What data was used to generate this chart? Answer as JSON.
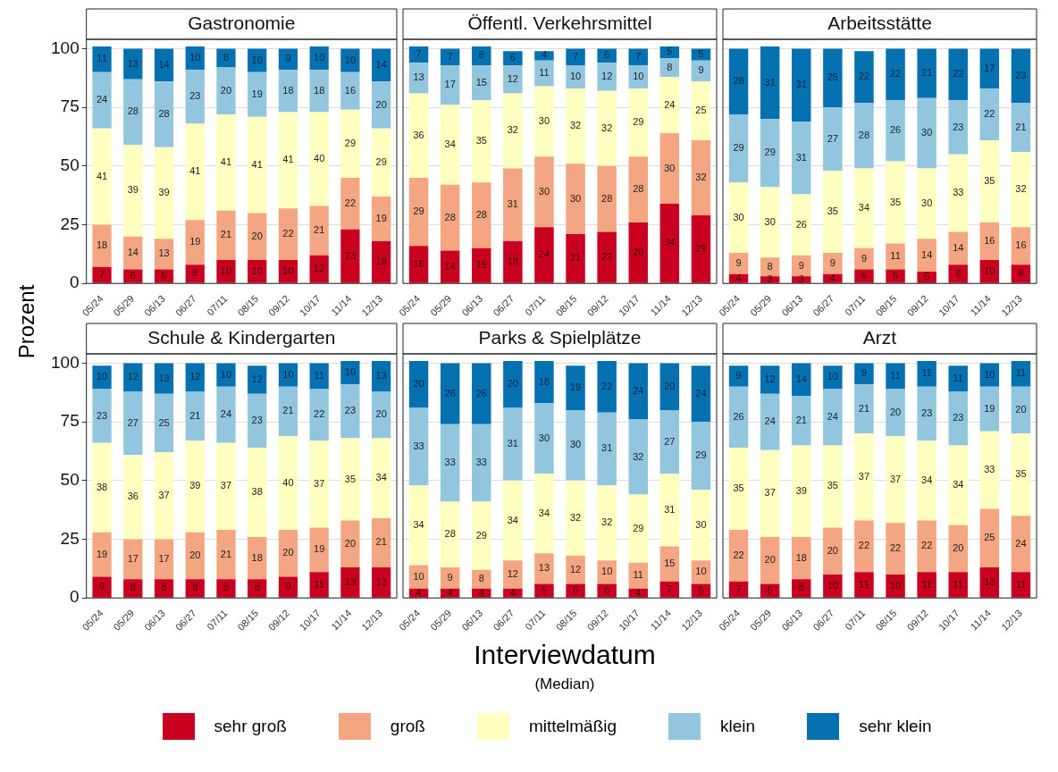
{
  "chart_data": [
    {
      "type": "bar",
      "stacked": true,
      "title": "Gastronomie",
      "ylabel": "Prozent",
      "categories": [
        "05/24",
        "05/29",
        "06/13",
        "06/27",
        "07/11",
        "08/15",
        "09/12",
        "10/17",
        "11/14",
        "12/13"
      ],
      "ylim": [
        0,
        104
      ],
      "yticks": [
        0,
        25,
        50,
        75,
        100
      ],
      "grid": "y",
      "data_labels": true,
      "legend": "bottom",
      "tick_labels": "xy",
      "series": [
        {
          "name": "sehr groß",
          "color": "#ca0020",
          "values": [
            7,
            6,
            6,
            8,
            10,
            10,
            10,
            12,
            23,
            18
          ]
        },
        {
          "name": "groß",
          "color": "#f4a582",
          "values": [
            18,
            14,
            13,
            19,
            21,
            20,
            22,
            21,
            22,
            19
          ]
        },
        {
          "name": "mittelmäßig",
          "color": "#ffffbf",
          "values": [
            41,
            39,
            39,
            41,
            41,
            41,
            41,
            40,
            29,
            29
          ]
        },
        {
          "name": "klein",
          "color": "#92c5de",
          "values": [
            24,
            28,
            28,
            23,
            20,
            19,
            18,
            18,
            16,
            20
          ]
        },
        {
          "name": "sehr klein",
          "color": "#0571b0",
          "values": [
            11,
            13,
            14,
            10,
            8,
            10,
            9,
            10,
            10,
            14
          ]
        }
      ]
    },
    {
      "type": "bar",
      "stacked": true,
      "title": "Öffentl. Verkehrsmittel",
      "categories": [
        "05/24",
        "05/29",
        "06/13",
        "06/27",
        "07/11",
        "08/15",
        "09/12",
        "10/17",
        "11/14",
        "12/13"
      ],
      "ylim": [
        0,
        104
      ],
      "yticks": [
        0,
        25,
        50,
        75,
        100
      ],
      "grid": "y",
      "data_labels": true,
      "tick_labels": "x",
      "series": [
        {
          "color": "#ca0020",
          "values": [
            16,
            14,
            15,
            18,
            24,
            21,
            22,
            26,
            34,
            29
          ]
        },
        {
          "color": "#f4a582",
          "values": [
            29,
            28,
            28,
            31,
            30,
            30,
            28,
            28,
            30,
            32
          ]
        },
        {
          "color": "#ffffbf",
          "values": [
            36,
            34,
            35,
            32,
            30,
            32,
            32,
            29,
            24,
            25
          ]
        },
        {
          "color": "#92c5de",
          "values": [
            13,
            17,
            15,
            12,
            11,
            10,
            12,
            10,
            8,
            9
          ]
        },
        {
          "color": "#0571b0",
          "values": [
            7,
            7,
            8,
            6,
            4,
            7,
            6,
            7,
            5,
            5
          ]
        }
      ]
    },
    {
      "type": "bar",
      "stacked": true,
      "title": "Arbeitsstätte",
      "categories": [
        "05/24",
        "05/29",
        "06/13",
        "06/27",
        "07/11",
        "08/15",
        "09/12",
        "10/17",
        "11/14",
        "12/13"
      ],
      "ylim": [
        0,
        104
      ],
      "yticks": [
        0,
        25,
        50,
        75,
        100
      ],
      "grid": "y",
      "data_labels": true,
      "tick_labels": "x",
      "series": [
        {
          "color": "#ca0020",
          "values": [
            4,
            3,
            3,
            4,
            6,
            6,
            5,
            8,
            10,
            8
          ]
        },
        {
          "color": "#f4a582",
          "values": [
            9,
            8,
            9,
            9,
            9,
            11,
            14,
            14,
            16,
            16
          ]
        },
        {
          "color": "#ffffbf",
          "values": [
            30,
            30,
            26,
            35,
            34,
            35,
            30,
            33,
            35,
            32
          ]
        },
        {
          "color": "#92c5de",
          "values": [
            29,
            29,
            31,
            27,
            28,
            26,
            30,
            23,
            22,
            21
          ]
        },
        {
          "color": "#0571b0",
          "values": [
            28,
            31,
            31,
            25,
            22,
            22,
            21,
            22,
            17,
            23
          ]
        }
      ]
    },
    {
      "type": "bar",
      "stacked": true,
      "title": "Schule & Kindergarten",
      "categories": [
        "05/24",
        "05/29",
        "06/13",
        "06/27",
        "07/11",
        "08/15",
        "09/12",
        "10/17",
        "11/14",
        "12/13"
      ],
      "ylim": [
        0,
        104
      ],
      "yticks": [
        0,
        25,
        50,
        75,
        100
      ],
      "grid": "y",
      "data_labels": true,
      "tick_labels": "xy",
      "series": [
        {
          "color": "#ca0020",
          "values": [
            9,
            8,
            8,
            8,
            8,
            8,
            9,
            11,
            13,
            13
          ]
        },
        {
          "color": "#f4a582",
          "values": [
            19,
            17,
            17,
            20,
            21,
            18,
            20,
            19,
            20,
            21
          ]
        },
        {
          "color": "#ffffbf",
          "values": [
            38,
            36,
            37,
            39,
            37,
            38,
            40,
            37,
            35,
            34
          ]
        },
        {
          "color": "#92c5de",
          "values": [
            23,
            27,
            25,
            21,
            24,
            23,
            21,
            22,
            23,
            20
          ]
        },
        {
          "color": "#0571b0",
          "values": [
            10,
            12,
            13,
            12,
            10,
            12,
            10,
            11,
            10,
            13
          ]
        }
      ]
    },
    {
      "type": "bar",
      "stacked": true,
      "title": "Parks & Spielplätze",
      "xlabel": "Interviewdatum",
      "annotations": [
        "(Median)"
      ],
      "categories": [
        "05/24",
        "05/29",
        "06/13",
        "06/27",
        "07/11",
        "08/15",
        "09/12",
        "10/17",
        "11/14",
        "12/13"
      ],
      "ylim": [
        0,
        104
      ],
      "yticks": [
        0,
        25,
        50,
        75,
        100
      ],
      "grid": "y",
      "data_labels": true,
      "tick_labels": "x",
      "series": [
        {
          "color": "#ca0020",
          "values": [
            4,
            4,
            4,
            4,
            6,
            6,
            6,
            4,
            7,
            6
          ]
        },
        {
          "color": "#f4a582",
          "values": [
            10,
            9,
            8,
            12,
            13,
            12,
            10,
            11,
            15,
            10
          ]
        },
        {
          "color": "#ffffbf",
          "values": [
            34,
            28,
            29,
            34,
            34,
            32,
            32,
            29,
            31,
            30
          ]
        },
        {
          "color": "#92c5de",
          "values": [
            33,
            33,
            33,
            31,
            30,
            30,
            31,
            32,
            27,
            29
          ]
        },
        {
          "color": "#0571b0",
          "values": [
            20,
            26,
            26,
            20,
            18,
            19,
            22,
            24,
            20,
            24
          ]
        }
      ]
    },
    {
      "type": "bar",
      "stacked": true,
      "title": "Arzt",
      "categories": [
        "05/24",
        "05/29",
        "06/13",
        "06/27",
        "07/11",
        "08/15",
        "09/12",
        "10/17",
        "11/14",
        "12/13"
      ],
      "ylim": [
        0,
        104
      ],
      "yticks": [
        0,
        25,
        50,
        75,
        100
      ],
      "grid": "y",
      "data_labels": true,
      "tick_labels": "x",
      "series": [
        {
          "color": "#ca0020",
          "values": [
            7,
            6,
            8,
            10,
            11,
            10,
            11,
            11,
            13,
            11
          ]
        },
        {
          "color": "#f4a582",
          "values": [
            22,
            20,
            18,
            20,
            22,
            22,
            22,
            20,
            25,
            24
          ]
        },
        {
          "color": "#ffffbf",
          "values": [
            35,
            37,
            39,
            35,
            37,
            37,
            34,
            34,
            33,
            35
          ]
        },
        {
          "color": "#92c5de",
          "values": [
            26,
            24,
            21,
            24,
            21,
            20,
            23,
            23,
            19,
            20
          ]
        },
        {
          "color": "#0571b0",
          "values": [
            9,
            12,
            14,
            10,
            9,
            11,
            11,
            11,
            10,
            11
          ]
        }
      ]
    }
  ]
}
